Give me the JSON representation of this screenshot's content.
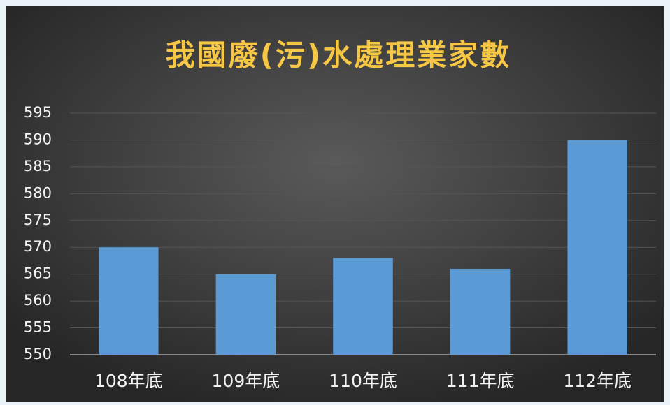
{
  "chart_data": {
    "type": "bar",
    "title": "我國廢(污)水處理業家數",
    "categories": [
      "108年底",
      "109年底",
      "110年底",
      "111年底",
      "112年底"
    ],
    "values": [
      570,
      565,
      568,
      566,
      590
    ],
    "color": "#5b9bd5",
    "ylim": [
      550,
      595
    ],
    "yticks": [
      550,
      555,
      560,
      565,
      570,
      575,
      580,
      585,
      590,
      595
    ],
    "grid": true
  }
}
